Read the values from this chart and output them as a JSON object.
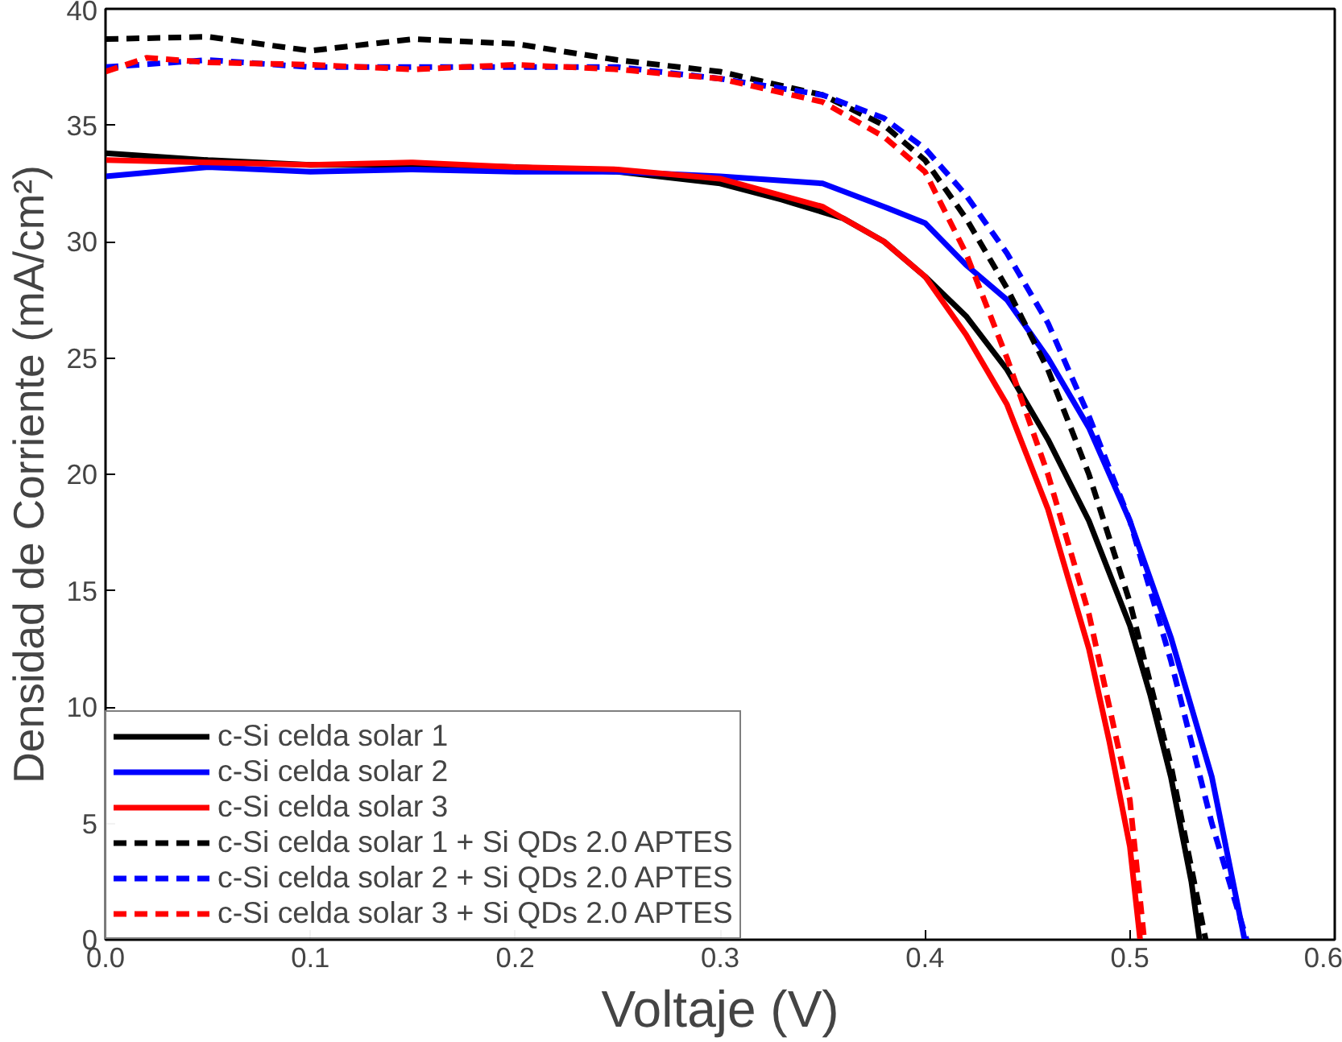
{
  "chart_data": {
    "type": "line",
    "xlabel": "Voltaje (V)",
    "ylabel": "Densidad de Corriente (mA/cm²)",
    "xlim": [
      0,
      0.6
    ],
    "xticks": [
      {
        "value": 0,
        "label": "0.0"
      },
      0.1,
      0.2,
      0.3,
      0.4,
      0.5,
      0.6
    ],
    "ylim": [
      0,
      40
    ],
    "yticks": [
      0,
      5,
      10,
      15,
      20,
      25,
      30,
      35,
      40
    ],
    "grid": false,
    "legend": "bottom left",
    "series": [
      {
        "name": "c-Si celda solar 1",
        "color": "#000000",
        "line_style": "solid",
        "x": [
          0,
          0.05,
          0.1,
          0.15,
          0.2,
          0.25,
          0.3,
          0.33,
          0.36,
          0.38,
          0.4,
          0.42,
          0.44,
          0.46,
          0.48,
          0.5,
          0.51,
          0.52,
          0.53,
          0.534
        ],
        "values": [
          33.8,
          33.5,
          33.3,
          33.3,
          33.2,
          33.0,
          32.5,
          31.8,
          31,
          30,
          28.5,
          26.8,
          24.5,
          21.5,
          18,
          13.5,
          10.5,
          7,
          2.5,
          0
        ]
      },
      {
        "name": "c-Si celda solar 2",
        "color": "#0000ff",
        "line_style": "solid",
        "x": [
          0,
          0.05,
          0.1,
          0.15,
          0.2,
          0.25,
          0.3,
          0.35,
          0.38,
          0.4,
          0.42,
          0.44,
          0.46,
          0.48,
          0.5,
          0.52,
          0.54,
          0.556
        ],
        "values": [
          32.8,
          33.2,
          33,
          33.1,
          33,
          33,
          32.8,
          32.5,
          31.5,
          30.8,
          29,
          27.5,
          25,
          22,
          18,
          13,
          7,
          0
        ]
      },
      {
        "name": "c-Si celda solar 3",
        "color": "#ff0000",
        "line_style": "solid",
        "x": [
          0,
          0.05,
          0.1,
          0.15,
          0.2,
          0.25,
          0.3,
          0.35,
          0.38,
          0.4,
          0.42,
          0.44,
          0.46,
          0.48,
          0.49,
          0.5,
          0.505
        ],
        "values": [
          33.5,
          33.4,
          33.3,
          33.4,
          33.2,
          33.1,
          32.7,
          31.5,
          30,
          28.5,
          26,
          23,
          18.5,
          12.5,
          8.5,
          4,
          0
        ]
      },
      {
        "name": "c-Si celda solar 1 + Si QDs 2.0 APTES",
        "color": "#000000",
        "line_style": "dashed",
        "x": [
          0,
          0.05,
          0.1,
          0.15,
          0.2,
          0.25,
          0.3,
          0.35,
          0.38,
          0.4,
          0.42,
          0.44,
          0.46,
          0.48,
          0.5,
          0.52,
          0.537
        ],
        "values": [
          38.7,
          38.8,
          38.2,
          38.7,
          38.5,
          37.8,
          37.3,
          36.3,
          35,
          33.5,
          31,
          28,
          24.5,
          20,
          14.5,
          7.5,
          0
        ]
      },
      {
        "name": "c-Si celda solar 2 + Si QDs 2.0 APTES",
        "color": "#0000ff",
        "line_style": "dashed",
        "x": [
          0,
          0.05,
          0.1,
          0.15,
          0.2,
          0.25,
          0.3,
          0.35,
          0.38,
          0.4,
          0.42,
          0.44,
          0.46,
          0.48,
          0.5,
          0.52,
          0.54,
          0.557
        ],
        "values": [
          37.5,
          37.8,
          37.5,
          37.5,
          37.5,
          37.5,
          37,
          36.3,
          35.3,
          34,
          32,
          29.5,
          26.5,
          22.5,
          18,
          12,
          5,
          0
        ]
      },
      {
        "name": "c-Si celda solar 3 + Si QDs 2.0 APTES",
        "color": "#ff0000",
        "line_style": "dashed",
        "x": [
          0,
          0.02,
          0.05,
          0.1,
          0.15,
          0.2,
          0.25,
          0.3,
          0.35,
          0.38,
          0.4,
          0.42,
          0.44,
          0.46,
          0.48,
          0.5,
          0.507
        ],
        "values": [
          37.3,
          37.9,
          37.7,
          37.6,
          37.4,
          37.6,
          37.4,
          37,
          36,
          34.5,
          33,
          29.5,
          25,
          20,
          14,
          6,
          0
        ]
      }
    ]
  }
}
